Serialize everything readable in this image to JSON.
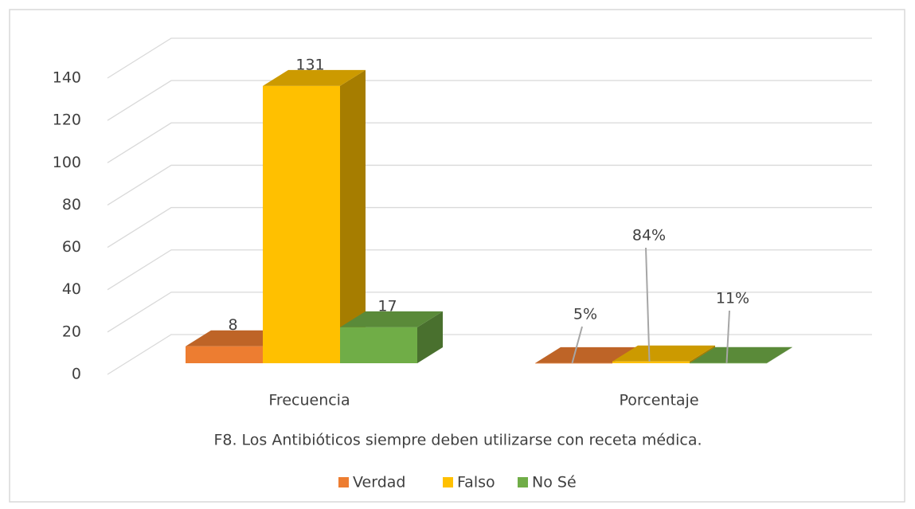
{
  "chart_data": {
    "type": "bar3d",
    "title": "F8. Los Antibióticos siempre deben utilizarse con receta médica.",
    "categories": [
      "Frecuencia",
      "Porcentaje"
    ],
    "series": [
      {
        "name": "Verdad",
        "color": "#ed7d31",
        "values": [
          8,
          0.05
        ],
        "value_labels": [
          "8",
          "5%"
        ]
      },
      {
        "name": "Falso",
        "color": "#ffc000",
        "values": [
          131,
          0.84
        ],
        "value_labels": [
          "131",
          "84%"
        ]
      },
      {
        "name": "No Sé",
        "color": "#70ad47",
        "values": [
          17,
          0.11
        ],
        "value_labels": [
          "17",
          "11%"
        ]
      }
    ],
    "ylim": [
      0,
      140
    ],
    "yticks": [
      0,
      20,
      40,
      60,
      80,
      100,
      120,
      140
    ],
    "grid": true,
    "legend": "bottom"
  }
}
